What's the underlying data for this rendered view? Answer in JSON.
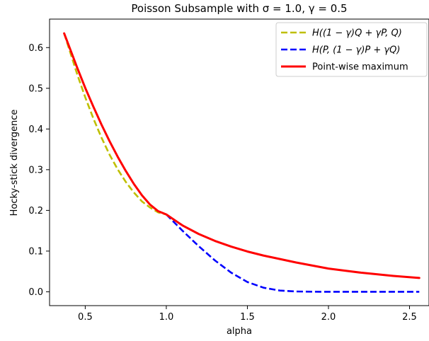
{
  "chart_data": {
    "type": "line",
    "title": "Poisson Subsample with σ = 1.0, γ = 0.5",
    "xlabel": "alpha",
    "ylabel": "Hocky-stick divergence",
    "xlim": [
      0.28,
      2.62
    ],
    "ylim": [
      -0.034,
      0.67
    ],
    "xticks": [
      0.5,
      1.0,
      1.5,
      2.0,
      2.5
    ],
    "xtick_labels": [
      "0.5",
      "1.0",
      "1.5",
      "2.0",
      "2.5"
    ],
    "yticks": [
      0.0,
      0.1,
      0.2,
      0.3,
      0.4,
      0.5,
      0.6
    ],
    "ytick_labels": [
      "0.0",
      "0.1",
      "0.2",
      "0.3",
      "0.4",
      "0.5",
      "0.6"
    ],
    "grid": false,
    "legend_position": "top-right",
    "series": [
      {
        "name": "H((1 − γ)Q + γP, Q)",
        "color": "#bfbf00",
        "dash": "dashed",
        "x": [
          0.37,
          0.45,
          0.5,
          0.55,
          0.6,
          0.65,
          0.7,
          0.75,
          0.8,
          0.85,
          0.9,
          0.95,
          1.0
        ],
        "y": [
          0.635,
          0.535,
          0.478,
          0.426,
          0.379,
          0.337,
          0.301,
          0.27,
          0.244,
          0.222,
          0.207,
          0.195,
          0.19
        ]
      },
      {
        "name": "H(P, (1 − γ)P + γQ)",
        "color": "#0000ff",
        "dash": "dashed",
        "x": [
          1.0,
          1.1,
          1.2,
          1.3,
          1.4,
          1.5,
          1.6,
          1.7,
          1.8,
          1.9,
          2.0,
          2.2,
          2.4,
          2.56
        ],
        "y": [
          0.19,
          0.15,
          0.112,
          0.077,
          0.047,
          0.024,
          0.01,
          0.003,
          0.0008,
          0.0002,
          0.0,
          0.0,
          0.0,
          0.0
        ]
      },
      {
        "name": "Point-wise maximum",
        "color": "#ff0000",
        "dash": "solid",
        "x": [
          0.37,
          0.45,
          0.5,
          0.55,
          0.6,
          0.65,
          0.7,
          0.75,
          0.8,
          0.85,
          0.9,
          0.95,
          1.0,
          1.1,
          1.2,
          1.3,
          1.4,
          1.5,
          1.6,
          1.8,
          2.0,
          2.2,
          2.4,
          2.56
        ],
        "y": [
          0.635,
          0.551,
          0.501,
          0.455,
          0.411,
          0.37,
          0.332,
          0.297,
          0.265,
          0.237,
          0.214,
          0.198,
          0.19,
          0.163,
          0.142,
          0.125,
          0.111,
          0.099,
          0.089,
          0.072,
          0.057,
          0.047,
          0.039,
          0.034
        ]
      }
    ]
  }
}
